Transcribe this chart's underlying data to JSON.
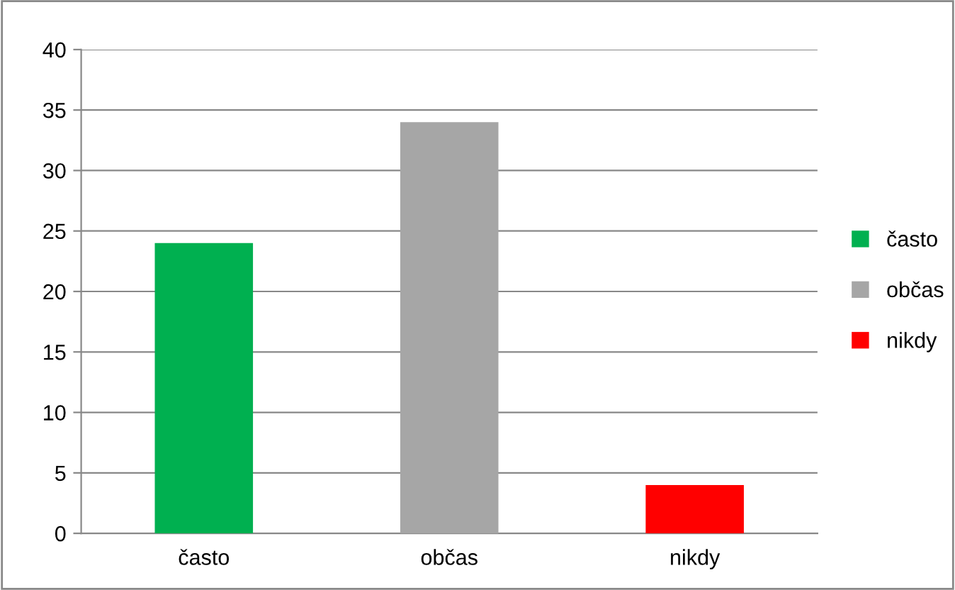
{
  "chart_data": {
    "type": "bar",
    "categories": [
      "často",
      "občas",
      "nikdy"
    ],
    "stacked": true,
    "series": [
      {
        "name": "často",
        "color": "#00b050",
        "values": [
          24,
          null,
          null
        ]
      },
      {
        "name": "občas",
        "color": "#a6a6a6",
        "values": [
          null,
          34,
          null
        ]
      },
      {
        "name": "nikdy",
        "color": "#ff0000",
        "values": [
          null,
          null,
          4
        ]
      }
    ],
    "ylim": [
      0,
      40
    ],
    "yticks": [
      0,
      5,
      10,
      15,
      20,
      25,
      30,
      35,
      40
    ],
    "grid": "y",
    "legend": "right"
  }
}
